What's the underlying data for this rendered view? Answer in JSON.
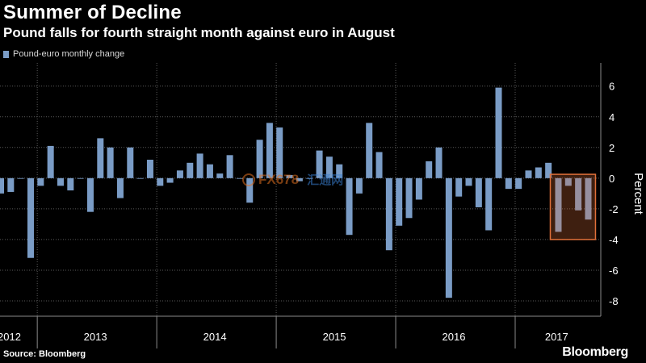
{
  "chart_data": {
    "type": "bar",
    "title": "Summer of Decline",
    "subtitle": "Pound falls for fourth straight month against euro in August",
    "series": [
      {
        "name": "Pound-euro monthly change",
        "color": "#7a9cc6",
        "values": [
          -1.0,
          -0.9,
          0.0,
          -5.2,
          -0.5,
          2.1,
          -0.5,
          -0.8,
          0.0,
          -2.2,
          2.6,
          2.0,
          -1.3,
          2.0,
          0.0,
          1.2,
          -0.5,
          -0.3,
          0.5,
          1.0,
          1.6,
          0.9,
          0.3,
          1.5,
          0.0,
          -1.6,
          2.5,
          3.6,
          3.3,
          0.2,
          -0.2,
          0.0,
          1.8,
          1.4,
          0.9,
          -3.7,
          -1.0,
          3.6,
          1.7,
          -4.7,
          -3.1,
          -2.6,
          -1.4,
          1.1,
          2.0,
          -7.8,
          -1.2,
          -0.5,
          -1.9,
          -3.4,
          5.9,
          -0.7,
          -0.7,
          0.5,
          0.7,
          1.0,
          -3.5,
          -0.5,
          -2.1,
          -2.7
        ]
      }
    ],
    "xlabel": "",
    "ylabel": "Percent",
    "ylim": [
      -9,
      7.3
    ],
    "yticks": [
      6,
      4,
      2,
      0,
      -2,
      -4,
      -6,
      -8
    ],
    "year_labels": [
      "2012",
      "2013",
      "2014",
      "2015",
      "2016",
      "2017"
    ],
    "highlight": {
      "start_index": 56,
      "end_index": 59,
      "range": [
        -4.0,
        0.25
      ],
      "color": "#e0703a"
    },
    "grid": true,
    "legend_position": "top-left"
  },
  "source": "Source: Bloomberg",
  "brand": "Bloomberg",
  "watermark": {
    "text": "FX678",
    "text2": "汇通网"
  },
  "colors": {
    "background": "#000000",
    "bar": "#7a9cc6",
    "grid": "#5a5a5a",
    "highlight": "#e0703a"
  }
}
